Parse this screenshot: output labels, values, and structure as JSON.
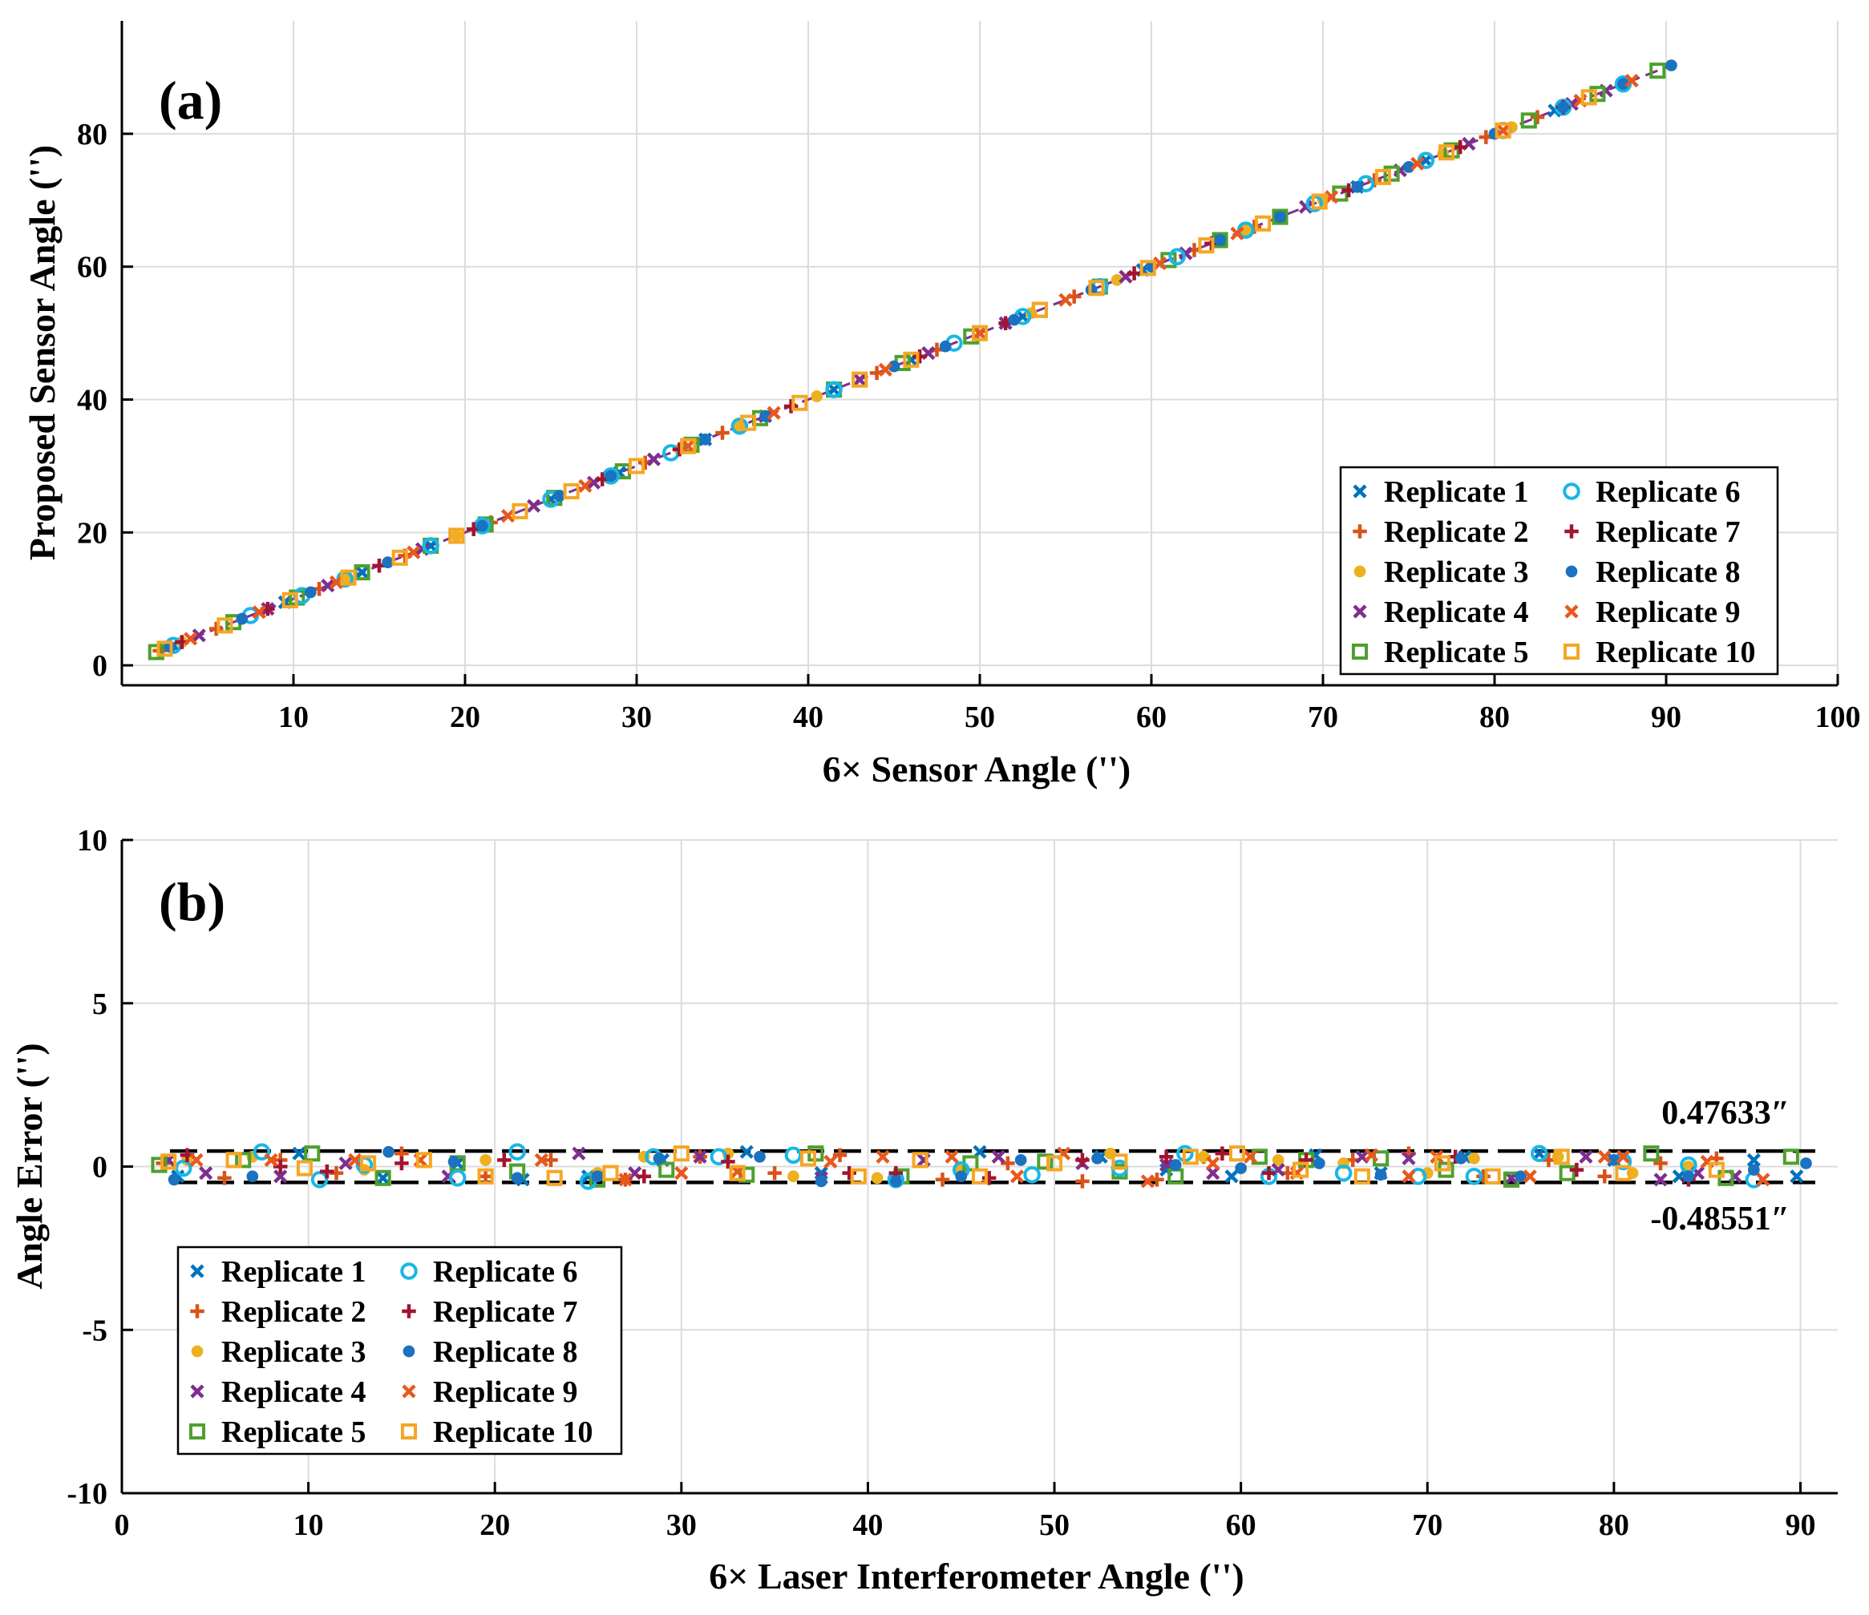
{
  "colors": {
    "Replicate 1": "#0072BD",
    "Replicate 2": "#D95319",
    "Replicate 3": "#EDB120",
    "Replicate 4": "#7E2F8E",
    "Replicate 5": "#4DA02D",
    "Replicate 6": "#18B7E6",
    "Replicate 7": "#A2142F",
    "Replicate 8": "#1A72C0",
    "Replicate 9": "#E8581C",
    "Replicate 10": "#F5A623"
  },
  "chart_data": [
    {
      "type": "scatter",
      "panel_label": "(a)",
      "xlabel": "6× Sensor Angle ('')",
      "ylabel": "Proposed Sensor Angle ('')",
      "xlim": [
        0,
        100
      ],
      "ylim": [
        -3,
        97
      ],
      "xticks": [
        10,
        20,
        30,
        40,
        50,
        60,
        70,
        80,
        90,
        100
      ],
      "yticks": [
        0,
        20,
        40,
        60,
        80
      ],
      "grid": true,
      "legend_position": "bottom-right",
      "markers": {
        "Replicate 1": "x",
        "Replicate 2": "plus",
        "Replicate 3": "dot",
        "Replicate 4": "x",
        "Replicate 5": "square",
        "Replicate 6": "circle",
        "Replicate 7": "plus",
        "Replicate 8": "dot",
        "Replicate 9": "x",
        "Replicate 10": "square"
      },
      "fit_line": {
        "x": [
          2,
          90
        ],
        "y": [
          2,
          90
        ]
      },
      "series": [
        {
          "name": "Replicate 1",
          "x": [
            3,
            9.5,
            14,
            18,
            25,
            29,
            34,
            41.5,
            46,
            52.5,
            59.5,
            64,
            67.5,
            72,
            76,
            83.5,
            87.5
          ],
          "y": [
            3,
            9.5,
            14,
            18,
            25,
            29,
            34,
            41.5,
            46,
            52.5,
            59.5,
            64,
            67.5,
            72,
            76,
            83.5,
            87.5
          ]
        },
        {
          "name": "Replicate 2",
          "x": [
            2.2,
            5.5,
            11.5,
            16.5,
            21.5,
            30.5,
            35,
            44,
            47.5,
            55.5,
            62.5,
            66,
            73,
            79.5,
            82.5
          ],
          "y": [
            2.2,
            5.5,
            11.5,
            16.5,
            21.5,
            30.5,
            35,
            44,
            47.5,
            55.5,
            62.5,
            66,
            73,
            79.5,
            82.5
          ]
        },
        {
          "name": "Replicate 3",
          "x": [
            3.5,
            7,
            13,
            19.5,
            25.5,
            32.5,
            36,
            40.5,
            45,
            53,
            58,
            65.5,
            70,
            77,
            81
          ],
          "y": [
            3.5,
            7,
            13,
            19.5,
            25.5,
            32.5,
            36,
            40.5,
            45,
            53,
            58,
            65.5,
            70,
            77,
            81
          ]
        },
        {
          "name": "Replicate 4",
          "x": [
            4.5,
            8.5,
            12,
            17.5,
            24,
            27.5,
            31,
            37.5,
            43,
            47,
            51.5,
            58.5,
            62,
            69,
            74.5,
            78.5,
            84.5,
            86.5
          ],
          "y": [
            4.5,
            8.5,
            12,
            17.5,
            24,
            27.5,
            31,
            37.5,
            43,
            47,
            51.5,
            58.5,
            62,
            69,
            74.5,
            78.5,
            84.5,
            86.5
          ]
        },
        {
          "name": "Replicate 5",
          "x": [
            2,
            6.5,
            10.2,
            14,
            18,
            21.2,
            25.2,
            29.2,
            33.2,
            37.2,
            41.5,
            45.5,
            49.5,
            53.5,
            57,
            61,
            64,
            67.5,
            71,
            74,
            77.5,
            82,
            86,
            89.5
          ],
          "y": [
            2,
            6.5,
            10.2,
            14,
            18,
            21.2,
            25.2,
            29.2,
            33.2,
            37.2,
            41.5,
            45.5,
            49.5,
            53.5,
            57,
            61,
            64,
            67.5,
            71,
            74,
            77.5,
            82,
            86,
            89.5
          ]
        },
        {
          "name": "Replicate 6",
          "x": [
            3,
            7.5,
            10.5,
            13,
            18,
            21,
            25,
            28.5,
            32,
            36,
            41.5,
            48.5,
            52.5,
            57,
            61.5,
            65.5,
            69.5,
            72.5,
            76,
            80.5,
            84,
            87.5
          ],
          "y": [
            3,
            7.5,
            10.5,
            13,
            18,
            21,
            25,
            28.5,
            32,
            36,
            41.5,
            48.5,
            52.5,
            57,
            61.5,
            65.5,
            69.5,
            72.5,
            76,
            80.5,
            84,
            87.5
          ]
        },
        {
          "name": "Replicate 7",
          "x": [
            3.5,
            8.5,
            15,
            20.5,
            28,
            32.5,
            39,
            46.5,
            51.5,
            59,
            63.5,
            71.5,
            78,
            84
          ],
          "y": [
            3.5,
            8.5,
            15,
            20.5,
            28,
            32.5,
            39,
            46.5,
            51.5,
            59,
            63.5,
            71.5,
            78,
            84
          ]
        },
        {
          "name": "Replicate 8",
          "x": [
            2.8,
            7,
            11,
            15.5,
            21,
            25.5,
            28.5,
            34,
            37.5,
            45,
            48,
            52,
            56.5,
            60,
            64,
            67.5,
            72,
            75,
            80,
            84,
            87.5,
            90.3
          ],
          "y": [
            2.8,
            7,
            11,
            15.5,
            21,
            25.5,
            28.5,
            34,
            37.5,
            45,
            48,
            52,
            56.5,
            60,
            64,
            67.5,
            72,
            75,
            80,
            84,
            87.5,
            90.3
          ]
        },
        {
          "name": "Replicate 9",
          "x": [
            4,
            8,
            12.5,
            17,
            22.5,
            27,
            33,
            38,
            44.5,
            50,
            55,
            60.5,
            65,
            70.5,
            75.5,
            80.5,
            85,
            88
          ],
          "y": [
            4,
            8,
            12.5,
            17,
            22.5,
            27,
            33,
            38,
            44.5,
            50,
            55,
            60.5,
            65,
            70.5,
            75.5,
            80.5,
            85,
            88
          ]
        },
        {
          "name": "Replicate 10",
          "x": [
            2.5,
            6,
            9.8,
            13.2,
            16.2,
            19.5,
            23.2,
            26.2,
            30,
            33,
            36.5,
            39.5,
            43,
            46,
            50,
            53.5,
            56.8,
            59.8,
            63.2,
            66.5,
            69.8,
            73.5,
            77.2,
            80.5,
            85.5
          ],
          "y": [
            2.5,
            6,
            9.8,
            13.2,
            16.2,
            19.5,
            23.2,
            26.2,
            30,
            33,
            36.5,
            39.5,
            43,
            46,
            50,
            53.5,
            56.8,
            59.8,
            63.2,
            66.5,
            69.8,
            73.5,
            77.2,
            80.5,
            85.5
          ]
        }
      ]
    },
    {
      "type": "scatter",
      "panel_label": "(b)",
      "xlabel": "6× Laser Interferometer Angle ('')",
      "ylabel": "Angle Error ('')",
      "xlim": [
        0,
        92
      ],
      "ylim": [
        -10,
        10
      ],
      "xticks": [
        0,
        10,
        20,
        30,
        40,
        50,
        60,
        70,
        80,
        90
      ],
      "yticks": [
        -10,
        -5,
        0,
        5,
        10
      ],
      "grid": true,
      "legend_position": "bottom-left",
      "markers": {
        "Replicate 1": "x",
        "Replicate 2": "plus",
        "Replicate 3": "dot",
        "Replicate 4": "x",
        "Replicate 5": "square",
        "Replicate 6": "circle",
        "Replicate 7": "plus",
        "Replicate 8": "dot",
        "Replicate 9": "x",
        "Replicate 10": "square"
      },
      "bounds": [
        {
          "value": 0.47633,
          "label": "0.47633″"
        },
        {
          "value": -0.48551,
          "label": "-0.48551″"
        }
      ],
      "series": [
        {
          "name": "Replicate 1",
          "x": [
            3,
            9.5,
            14,
            18,
            21.5,
            25,
            29,
            33.5,
            37.5,
            41.5,
            46,
            52.5,
            56,
            59.5,
            64,
            67.5,
            72,
            76,
            80,
            83.5,
            87.5,
            89.8
          ],
          "y": [
            -0.3,
            0.4,
            -0.35,
            0.1,
            -0.4,
            -0.3,
            0.2,
            0.45,
            -0.2,
            -0.4,
            0.45,
            0.3,
            -0.1,
            -0.3,
            0.35,
            -0.2,
            0.3,
            0.4,
            0.2,
            -0.3,
            0.2,
            -0.3
          ]
        },
        {
          "name": "Replicate 2",
          "x": [
            2.2,
            5.5,
            8.5,
            11.5,
            15,
            19.5,
            23,
            27,
            31,
            35,
            38.5,
            44,
            47.5,
            51.5,
            55.5,
            58,
            62.5,
            66,
            69,
            73,
            76.5,
            79.5,
            82.5,
            85.5
          ],
          "y": [
            0.1,
            -0.35,
            0.2,
            -0.2,
            0.4,
            -0.3,
            0.2,
            -0.4,
            0.3,
            -0.2,
            0.35,
            -0.4,
            0.1,
            -0.45,
            -0.4,
            0.3,
            -0.2,
            0.2,
            0.4,
            -0.3,
            0.2,
            -0.3,
            0.1,
            0.25
          ]
        },
        {
          "name": "Replicate 3",
          "x": [
            3.5,
            7,
            13,
            19.5,
            25.5,
            28,
            32.5,
            36,
            40.5,
            45,
            53,
            58,
            62,
            65.5,
            70,
            72.5,
            77,
            81,
            84
          ],
          "y": [
            0.2,
            0.3,
            -0.1,
            0.2,
            -0.2,
            0.3,
            0.4,
            -0.3,
            -0.35,
            -0.1,
            0.4,
            0.3,
            0.2,
            0.1,
            -0.2,
            0.25,
            0.3,
            -0.2,
            0.0
          ]
        },
        {
          "name": "Replicate 4",
          "x": [
            2.5,
            4.5,
            8.5,
            12,
            17.5,
            24.5,
            27.5,
            31,
            37.5,
            43,
            47,
            51.5,
            56,
            58.5,
            62,
            66.5,
            69,
            74.5,
            78.5,
            82.5,
            84.5,
            86.5
          ],
          "y": [
            0.2,
            -0.2,
            -0.3,
            0.1,
            -0.3,
            0.4,
            -0.2,
            0.3,
            -0.35,
            0.2,
            0.3,
            0.1,
            0.05,
            -0.2,
            -0.1,
            0.3,
            0.25,
            -0.35,
            0.3,
            -0.4,
            -0.2,
            -0.3
          ]
        },
        {
          "name": "Replicate 5",
          "x": [
            2,
            6.5,
            10.2,
            14,
            18,
            21.2,
            25.5,
            29.2,
            33.5,
            37.2,
            41.8,
            45.5,
            49.5,
            53.5,
            56.5,
            61,
            63.5,
            67.5,
            71,
            74.5,
            77.5,
            82,
            86,
            89.5
          ],
          "y": [
            0.05,
            0.2,
            0.4,
            -0.35,
            0.1,
            -0.15,
            -0.4,
            -0.1,
            -0.25,
            0.4,
            -0.3,
            0.1,
            0.15,
            -0.15,
            -0.3,
            0.3,
            0.2,
            0.25,
            -0.1,
            -0.4,
            -0.2,
            0.4,
            -0.35,
            0.3
          ]
        },
        {
          "name": "Replicate 6",
          "x": [
            3.3,
            7.5,
            10.6,
            13,
            18,
            21.2,
            25,
            28.5,
            32,
            36,
            41.5,
            45,
            48.8,
            53.5,
            57,
            61.5,
            65.5,
            69.5,
            72.5,
            76,
            80.5,
            84,
            87.5
          ],
          "y": [
            -0.05,
            0.45,
            -0.4,
            0.05,
            -0.35,
            0.45,
            -0.45,
            0.3,
            0.3,
            0.35,
            -0.4,
            -0.1,
            -0.25,
            -0.05,
            0.4,
            -0.3,
            -0.2,
            -0.3,
            -0.3,
            0.4,
            0.15,
            0.05,
            -0.4
          ]
        },
        {
          "name": "Replicate 7",
          "x": [
            3.5,
            8.5,
            11,
            15,
            20.5,
            28,
            32.5,
            39,
            41.5,
            46.5,
            51.5,
            56,
            59,
            61.5,
            63.5,
            71.5,
            78,
            84
          ],
          "y": [
            0.35,
            0.0,
            -0.15,
            0.1,
            0.2,
            -0.3,
            0.15,
            -0.2,
            -0.2,
            -0.35,
            0.2,
            0.3,
            0.4,
            -0.2,
            0.2,
            0.3,
            -0.1,
            -0.4
          ]
        },
        {
          "name": "Replicate 8",
          "x": [
            2.8,
            7,
            14.3,
            17.8,
            21.2,
            25.5,
            28.8,
            34.2,
            37.5,
            41.5,
            45,
            48.2,
            52.3,
            56.5,
            60,
            64.2,
            67.5,
            71.8,
            75,
            80,
            84,
            87.5,
            90.3
          ],
          "y": [
            -0.4,
            -0.3,
            0.45,
            0.15,
            -0.35,
            -0.3,
            0.25,
            0.3,
            -0.45,
            -0.45,
            -0.3,
            0.2,
            0.25,
            0.05,
            -0.05,
            0.1,
            -0.25,
            0.25,
            -0.3,
            0.2,
            -0.3,
            -0.1,
            0.1
          ]
        },
        {
          "name": "Replicate 9",
          "x": [
            4,
            8,
            12.5,
            16,
            22.5,
            27,
            30,
            33,
            38,
            40.8,
            44.5,
            48,
            50.5,
            55,
            58.5,
            60.5,
            63,
            67,
            69,
            70.5,
            75.5,
            79.5,
            80.5,
            85,
            88
          ],
          "y": [
            0.2,
            0.2,
            0.2,
            0.2,
            0.2,
            -0.4,
            -0.2,
            -0.15,
            0.15,
            0.3,
            0.3,
            -0.3,
            0.4,
            -0.45,
            0.1,
            0.3,
            -0.2,
            0.35,
            -0.3,
            0.3,
            -0.3,
            0.3,
            0.3,
            0.15,
            -0.4
          ]
        },
        {
          "name": "Replicate 10",
          "x": [
            2.5,
            6,
            9.8,
            13.2,
            16.2,
            19.5,
            23.2,
            26.2,
            30,
            33,
            36.8,
            39.5,
            42.8,
            46,
            50,
            53.5,
            57.3,
            59.8,
            63.2,
            66.5,
            70.8,
            73.5,
            77.2,
            80.5,
            85.5
          ],
          "y": [
            0.15,
            0.2,
            -0.05,
            0.1,
            0.2,
            -0.3,
            -0.35,
            -0.2,
            0.4,
            -0.2,
            0.25,
            -0.3,
            0.2,
            -0.3,
            0.1,
            0.15,
            0.3,
            0.4,
            -0.1,
            -0.3,
            0.1,
            -0.3,
            0.3,
            -0.2,
            -0.1
          ]
        }
      ]
    }
  ]
}
